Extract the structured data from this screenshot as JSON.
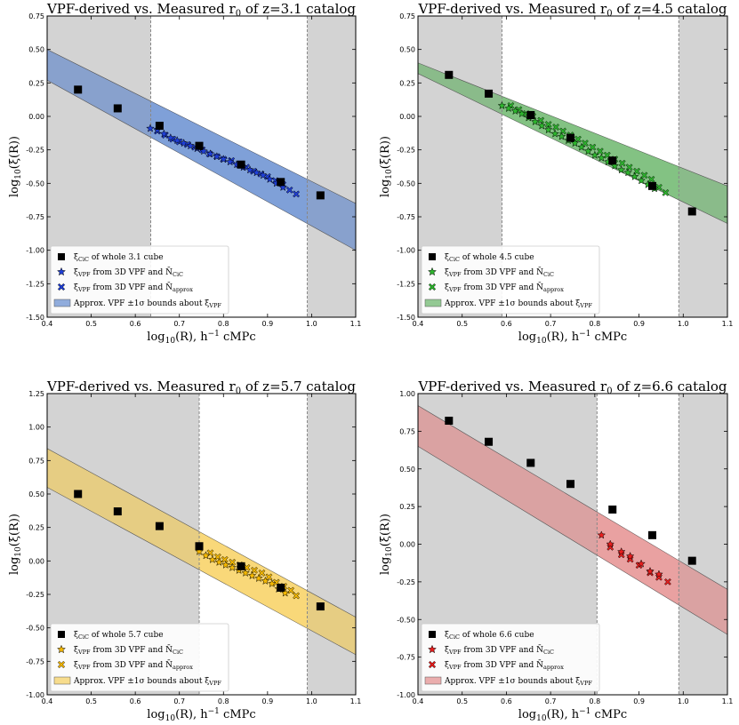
{
  "chart_data": [
    {
      "type": "scatter",
      "title_main": "VPF-derived vs. Measured r",
      "title_sub": "0",
      "title_tail": " of z=3.1 catalog",
      "xlabel_main": "log",
      "xlabel_sub": "10",
      "xlabel_tail_1": "(R), h",
      "xlabel_sup": "−1",
      "xlabel_tail_2": " cMPc",
      "ylabel_main": "log",
      "ylabel_sub": "10",
      "ylabel_tail": "(ξ̄(R))",
      "xlim": [
        0.4,
        1.1
      ],
      "ylim": [
        -1.5,
        0.75
      ],
      "xticks": [
        "0.4",
        "0.5",
        "0.6",
        "0.7",
        "0.8",
        "0.9",
        "1.0",
        "1.1"
      ],
      "yticks": [
        "-1.50",
        "-1.25",
        "-1.00",
        "-0.75",
        "-0.50",
        "-0.25",
        "0.00",
        "0.25",
        "0.50",
        "0.75"
      ],
      "shade_left": [
        0.4,
        0.635
      ],
      "shade_right": [
        0.99,
        1.1
      ],
      "band": {
        "upper": [
          [
            0.4,
            0.5
          ],
          [
            1.1,
            -0.65
          ]
        ],
        "lower": [
          [
            0.4,
            0.27
          ],
          [
            1.1,
            -1.0
          ]
        ],
        "color": "#4a78c8"
      },
      "band_fill_segment": [
        0.635,
        0.99
      ],
      "cic": [
        [
          0.47,
          0.2
        ],
        [
          0.56,
          0.06
        ],
        [
          0.655,
          -0.07
        ],
        [
          0.745,
          -0.22
        ],
        [
          0.84,
          -0.36
        ],
        [
          0.93,
          -0.49
        ],
        [
          1.02,
          -0.59
        ]
      ],
      "vpf_star": [
        [
          0.634,
          -0.09
        ],
        [
          0.65,
          -0.1
        ],
        [
          0.665,
          -0.13
        ],
        [
          0.68,
          -0.16
        ],
        [
          0.695,
          -0.18
        ],
        [
          0.71,
          -0.2
        ],
        [
          0.725,
          -0.22
        ],
        [
          0.74,
          -0.24
        ],
        [
          0.755,
          -0.26
        ],
        [
          0.77,
          -0.28
        ],
        [
          0.785,
          -0.3
        ],
        [
          0.8,
          -0.32
        ],
        [
          0.815,
          -0.34
        ],
        [
          0.83,
          -0.36
        ],
        [
          0.845,
          -0.38
        ],
        [
          0.86,
          -0.4
        ],
        [
          0.875,
          -0.42
        ],
        [
          0.89,
          -0.44
        ],
        [
          0.905,
          -0.47
        ],
        [
          0.92,
          -0.5
        ],
        [
          0.935,
          -0.53
        ]
      ],
      "vpf_x": [
        [
          0.65,
          -0.11
        ],
        [
          0.668,
          -0.14
        ],
        [
          0.685,
          -0.17
        ],
        [
          0.7,
          -0.19
        ],
        [
          0.718,
          -0.21
        ],
        [
          0.735,
          -0.23
        ],
        [
          0.752,
          -0.25
        ],
        [
          0.768,
          -0.28
        ],
        [
          0.785,
          -0.3
        ],
        [
          0.8,
          -0.32
        ],
        [
          0.818,
          -0.33
        ],
        [
          0.835,
          -0.36
        ],
        [
          0.852,
          -0.38
        ],
        [
          0.868,
          -0.41
        ],
        [
          0.885,
          -0.43
        ],
        [
          0.9,
          -0.45
        ],
        [
          0.918,
          -0.48
        ],
        [
          0.935,
          -0.51
        ],
        [
          0.95,
          -0.55
        ],
        [
          0.965,
          -0.58
        ]
      ],
      "marker_color": "#1f3fd6",
      "legend": {
        "placement": "lower-left",
        "cic_main": "ξ̄",
        "cic_sub": "CiC",
        "cic_tail": " of whole 3.1 cube",
        "star_main": "ξ̄",
        "star_sub": "VPF",
        "star_mid": " from 3D VPF and N̄",
        "star_sub2": "CiC",
        "x_main": "ξ̄",
        "x_sub": "VPF",
        "x_mid": " from 3D VPF and N̄",
        "x_sub2": "approx",
        "band_main": "Approx. VPF ±1σ bounds about ξ̄",
        "band_sub": "VPF"
      }
    },
    {
      "type": "scatter",
      "title_main": "VPF-derived vs. Measured r",
      "title_sub": "0",
      "title_tail": " of z=4.5 catalog",
      "xlabel_main": "log",
      "xlabel_sub": "10",
      "xlabel_tail_1": "(R), h",
      "xlabel_sup": "−1",
      "xlabel_tail_2": " cMPc",
      "ylabel_main": "log",
      "ylabel_sub": "10",
      "ylabel_tail": "(ξ̄(R))",
      "xlim": [
        0.4,
        1.1
      ],
      "ylim": [
        -1.5,
        0.75
      ],
      "xticks": [
        "0.4",
        "0.5",
        "0.6",
        "0.7",
        "0.8",
        "0.9",
        "1.0",
        "1.1"
      ],
      "yticks": [
        "-1.50",
        "-1.25",
        "-1.00",
        "-0.75",
        "-0.50",
        "-0.25",
        "0.00",
        "0.25",
        "0.50",
        "0.75"
      ],
      "shade_left": [
        0.4,
        0.59
      ],
      "shade_right": [
        0.99,
        1.1
      ],
      "band": {
        "upper": [
          [
            0.4,
            0.4
          ],
          [
            1.1,
            -0.52
          ]
        ],
        "lower": [
          [
            0.4,
            0.32
          ],
          [
            1.1,
            -0.8
          ]
        ],
        "color": "#4fa84f"
      },
      "band_fill_segment": [
        0.59,
        0.99
      ],
      "cic": [
        [
          0.47,
          0.31
        ],
        [
          0.56,
          0.17
        ],
        [
          0.655,
          0.01
        ],
        [
          0.745,
          -0.16
        ],
        [
          0.84,
          -0.33
        ],
        [
          0.93,
          -0.52
        ],
        [
          1.02,
          -0.71
        ]
      ],
      "vpf_star": [
        [
          0.59,
          0.08
        ],
        [
          0.605,
          0.06
        ],
        [
          0.62,
          0.04
        ],
        [
          0.635,
          0.02
        ],
        [
          0.65,
          -0.01
        ],
        [
          0.665,
          -0.04
        ],
        [
          0.68,
          -0.07
        ],
        [
          0.695,
          -0.1
        ],
        [
          0.71,
          -0.13
        ],
        [
          0.725,
          -0.15
        ],
        [
          0.74,
          -0.18
        ],
        [
          0.755,
          -0.2
        ],
        [
          0.77,
          -0.23
        ],
        [
          0.785,
          -0.26
        ],
        [
          0.8,
          -0.29
        ],
        [
          0.815,
          -0.31
        ],
        [
          0.83,
          -0.34
        ],
        [
          0.845,
          -0.37
        ],
        [
          0.86,
          -0.4
        ],
        [
          0.875,
          -0.42
        ],
        [
          0.89,
          -0.45
        ],
        [
          0.905,
          -0.48
        ],
        [
          0.92,
          -0.51
        ],
        [
          0.935,
          -0.54
        ]
      ],
      "vpf_x": [
        [
          0.61,
          0.08
        ],
        [
          0.628,
          0.05
        ],
        [
          0.645,
          0.02
        ],
        [
          0.66,
          0.0
        ],
        [
          0.678,
          -0.03
        ],
        [
          0.695,
          -0.06
        ],
        [
          0.712,
          -0.08
        ],
        [
          0.728,
          -0.11
        ],
        [
          0.745,
          -0.14
        ],
        [
          0.762,
          -0.17
        ],
        [
          0.778,
          -0.2
        ],
        [
          0.795,
          -0.23
        ],
        [
          0.812,
          -0.26
        ],
        [
          0.828,
          -0.29
        ],
        [
          0.845,
          -0.32
        ],
        [
          0.862,
          -0.35
        ],
        [
          0.878,
          -0.38
        ],
        [
          0.895,
          -0.41
        ],
        [
          0.912,
          -0.44
        ],
        [
          0.928,
          -0.47
        ],
        [
          0.945,
          -0.53
        ],
        [
          0.96,
          -0.57
        ]
      ],
      "marker_color": "#2db52d",
      "legend": {
        "placement": "lower-left",
        "cic_main": "ξ̄",
        "cic_sub": "CiC",
        "cic_tail": " of whole 4.5 cube",
        "star_main": "ξ̄",
        "star_sub": "VPF",
        "star_mid": " from 3D VPF and N̄",
        "star_sub2": "CiC",
        "x_main": "ξ̄",
        "x_sub": "VPF",
        "x_mid": " from 3D VPF and N̄",
        "x_sub2": "approx",
        "band_main": "Approx. VPF ±1σ bounds about ξ̄",
        "band_sub": "VPF"
      }
    },
    {
      "type": "scatter",
      "title_main": "VPF-derived vs. Measured r",
      "title_sub": "0",
      "title_tail": " of z=5.7 catalog",
      "xlabel_main": "log",
      "xlabel_sub": "10",
      "xlabel_tail_1": "(R), h",
      "xlabel_sup": "−1",
      "xlabel_tail_2": " cMPc",
      "ylabel_main": "log",
      "ylabel_sub": "10",
      "ylabel_tail": "(ξ̄(R))",
      "xlim": [
        0.4,
        1.1
      ],
      "ylim": [
        -1.0,
        1.25
      ],
      "xticks": [
        "0.4",
        "0.5",
        "0.6",
        "0.7",
        "0.8",
        "0.9",
        "1.0",
        "1.1"
      ],
      "yticks": [
        "-1.00",
        "-0.75",
        "-0.50",
        "-0.25",
        "0.00",
        "0.25",
        "0.50",
        "0.75",
        "1.00",
        "1.25"
      ],
      "shade_left": [
        0.4,
        0.745
      ],
      "shade_right": [
        0.99,
        1.1
      ],
      "band": {
        "upper": [
          [
            0.4,
            0.84
          ],
          [
            1.1,
            -0.42
          ]
        ],
        "lower": [
          [
            0.4,
            0.55
          ],
          [
            1.1,
            -0.7
          ]
        ],
        "color": "#f5c842"
      },
      "band_fill_segment": [
        0.745,
        0.99
      ],
      "cic": [
        [
          0.47,
          0.5
        ],
        [
          0.56,
          0.37
        ],
        [
          0.655,
          0.26
        ],
        [
          0.745,
          0.11
        ],
        [
          0.84,
          -0.04
        ],
        [
          0.93,
          -0.2
        ],
        [
          1.02,
          -0.34
        ]
      ],
      "vpf_star": [
        [
          0.745,
          0.07
        ],
        [
          0.76,
          0.04
        ],
        [
          0.775,
          0.01
        ],
        [
          0.79,
          -0.01
        ],
        [
          0.805,
          -0.03
        ],
        [
          0.82,
          -0.05
        ],
        [
          0.835,
          -0.07
        ],
        [
          0.85,
          -0.09
        ],
        [
          0.865,
          -0.11
        ],
        [
          0.88,
          -0.13
        ],
        [
          0.895,
          -0.15
        ],
        [
          0.91,
          -0.17
        ],
        [
          0.925,
          -0.21
        ],
        [
          0.94,
          -0.24
        ]
      ],
      "vpf_x": [
        [
          0.77,
          0.06
        ],
        [
          0.787,
          0.03
        ],
        [
          0.803,
          0.01
        ],
        [
          0.82,
          -0.01
        ],
        [
          0.837,
          -0.03
        ],
        [
          0.853,
          -0.05
        ],
        [
          0.87,
          -0.07
        ],
        [
          0.887,
          -0.09
        ],
        [
          0.903,
          -0.12
        ],
        [
          0.92,
          -0.16
        ],
        [
          0.937,
          -0.19
        ],
        [
          0.953,
          -0.22
        ],
        [
          0.965,
          -0.26
        ]
      ],
      "marker_color": "#f5b800",
      "legend": {
        "placement": "lower-left",
        "cic_main": "ξ̄",
        "cic_sub": "CiC",
        "cic_tail": " of whole 5.7 cube",
        "star_main": "ξ̄",
        "star_sub": "VPF",
        "star_mid": " from 3D VPF and N̄",
        "star_sub2": "CiC",
        "x_main": "ξ̄",
        "x_sub": "VPF",
        "x_mid": " from 3D VPF and N̄",
        "x_sub2": "approx",
        "band_main": "Approx. VPF ±1σ bounds about ξ̄",
        "band_sub": "VPF"
      }
    },
    {
      "type": "scatter",
      "title_main": "VPF-derived vs. Measured r",
      "title_sub": "0",
      "title_tail": " of z=6.6 catalog",
      "xlabel_main": "log",
      "xlabel_sub": "10",
      "xlabel_tail_1": "(R), h",
      "xlabel_sup": "−1",
      "xlabel_tail_2": " cMPc",
      "ylabel_main": "log",
      "ylabel_sub": "10",
      "ylabel_tail": "(ξ̄(R))",
      "xlim": [
        0.4,
        1.1
      ],
      "ylim": [
        -1.0,
        1.0
      ],
      "xticks": [
        "0.4",
        "0.5",
        "0.6",
        "0.7",
        "0.8",
        "0.9",
        "1.0",
        "1.1"
      ],
      "yticks": [
        "-1.00",
        "-0.75",
        "-0.50",
        "-0.25",
        "0.00",
        "0.25",
        "0.50",
        "0.75",
        "1.00"
      ],
      "shade_left": [
        0.4,
        0.805
      ],
      "shade_right": [
        0.99,
        1.1
      ],
      "band": {
        "upper": [
          [
            0.4,
            0.92
          ],
          [
            1.1,
            -0.3
          ]
        ],
        "lower": [
          [
            0.4,
            0.65
          ],
          [
            1.1,
            -0.6
          ]
        ],
        "color": "#e07a7a"
      },
      "band_fill_segment": [
        0.805,
        0.99
      ],
      "cic": [
        [
          0.47,
          0.82
        ],
        [
          0.56,
          0.68
        ],
        [
          0.655,
          0.54
        ],
        [
          0.745,
          0.4
        ],
        [
          0.84,
          0.23
        ],
        [
          0.93,
          0.06
        ],
        [
          1.02,
          -0.11
        ]
      ],
      "vpf_star": [
        [
          0.815,
          0.06
        ],
        [
          0.835,
          0.0
        ],
        [
          0.86,
          -0.05
        ],
        [
          0.88,
          -0.08
        ],
        [
          0.905,
          -0.13
        ],
        [
          0.925,
          -0.18
        ],
        [
          0.945,
          -0.2
        ]
      ],
      "vpf_x": [
        [
          0.835,
          -0.02
        ],
        [
          0.86,
          -0.07
        ],
        [
          0.88,
          -0.1
        ],
        [
          0.9,
          -0.14
        ],
        [
          0.925,
          -0.19
        ],
        [
          0.945,
          -0.22
        ],
        [
          0.965,
          -0.25
        ]
      ],
      "marker_color": "#e81e1e",
      "legend": {
        "placement": "lower-left",
        "cic_main": "ξ̄",
        "cic_sub": "CiC",
        "cic_tail": " of whole 6.6 cube",
        "star_main": "ξ̄",
        "star_sub": "VPF",
        "star_mid": " from 3D VPF and N̄",
        "star_sub2": "CiC",
        "x_main": "ξ̄",
        "x_sub": "VPF",
        "x_mid": " from 3D VPF and N̄",
        "x_sub2": "approx",
        "band_main": "Approx. VPF ±1σ bounds about ξ̄",
        "band_sub": "VPF"
      }
    }
  ]
}
